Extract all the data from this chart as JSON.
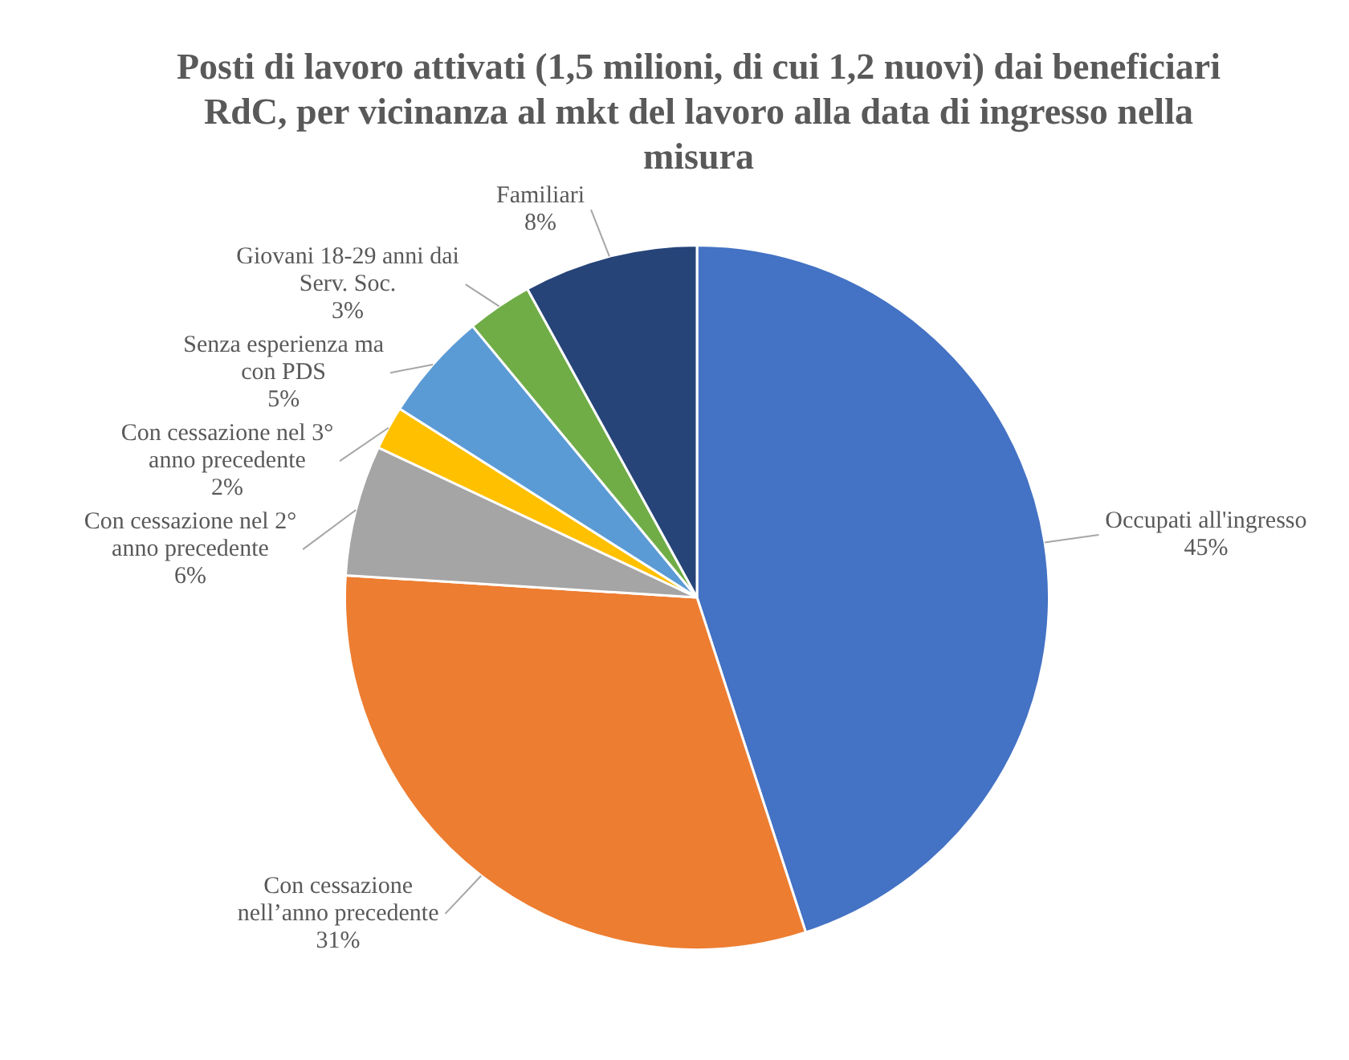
{
  "chart_data": {
    "type": "pie",
    "title": "Posti di lavoro attivati (1,5 milioni, di cui 1,2 nuovi) dai beneficiari RdC, per vicinanza al mkt del lavoro alla data di ingresso nella misura",
    "categories": [
      "Occupati all'ingresso",
      "Con cessazione nell’anno precedente",
      "Con cessazione nel 2° anno precedente",
      "Con cessazione nel 3° anno precedente",
      "Senza esperienza ma con PDS",
      "Giovani 18-29 anni dai Serv. Soc.",
      "Familiari"
    ],
    "values": [
      45,
      31,
      6,
      2,
      5,
      3,
      8
    ],
    "value_labels": [
      "45%",
      "31%",
      "6%",
      "2%",
      "5%",
      "3%",
      "8%"
    ],
    "colors": [
      "#4472c4",
      "#ed7d31",
      "#a5a5a5",
      "#ffc000",
      "#5b9bd5",
      "#70ad47",
      "#264478"
    ],
    "legend": false
  }
}
